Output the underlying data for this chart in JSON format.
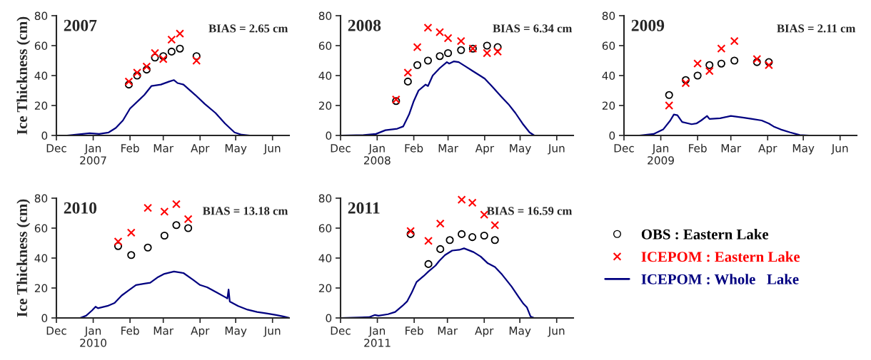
{
  "chart_data": [
    {
      "type": "scatter",
      "title": "2007",
      "ylabel": "Ice Thickness (cm)",
      "annotations": [
        "BIAS = 2.65 cm"
      ],
      "xlim": [
        "2006-12-01",
        "2007-06-15"
      ],
      "xticks": [
        {
          "value": "2006-12-01",
          "label": "Dec"
        },
        {
          "value": "2007-01-01",
          "label": "Jan\n2007"
        },
        {
          "value": "2007-02-01",
          "label": "Feb"
        },
        {
          "value": "2007-03-01",
          "label": "Mar"
        },
        {
          "value": "2007-04-01",
          "label": "Apr"
        },
        {
          "value": "2007-05-01",
          "label": "May"
        },
        {
          "value": "2007-06-01",
          "label": "Jun"
        }
      ],
      "ylim": [
        0,
        80
      ],
      "yticks": [
        0,
        20,
        40,
        60,
        80
      ],
      "grid": false,
      "series": [
        {
          "marker": "circle",
          "color": "#000000",
          "x": [
            "2007-01-31",
            "2007-02-07",
            "2007-02-15",
            "2007-02-22",
            "2007-03-01",
            "2007-03-08",
            "2007-03-15",
            "2007-03-29"
          ],
          "values": [
            34,
            40,
            44,
            52,
            53,
            56,
            58,
            53
          ]
        },
        {
          "marker": "cross",
          "color": "#ff0000",
          "x": [
            "2007-01-31",
            "2007-02-07",
            "2007-02-15",
            "2007-02-22",
            "2007-03-01",
            "2007-03-08",
            "2007-03-15",
            "2007-03-29"
          ],
          "values": [
            36,
            42,
            46,
            55,
            51,
            64,
            68,
            50
          ]
        },
        {
          "type": "line",
          "marker": "none",
          "line_style": "solid",
          "color": "#000080",
          "x": [
            "2006-12-10",
            "2006-12-29",
            "2007-01-06",
            "2007-01-14",
            "2007-01-20",
            "2007-01-26",
            "2007-02-01",
            "2007-02-09",
            "2007-02-13",
            "2007-02-19",
            "2007-02-27",
            "2007-03-06",
            "2007-03-10",
            "2007-03-13",
            "2007-03-18",
            "2007-03-28",
            "2007-04-05",
            "2007-04-14",
            "2007-04-22",
            "2007-04-30",
            "2007-05-06",
            "2007-05-13"
          ],
          "values": [
            0,
            1.5,
            1,
            2,
            5,
            10,
            18,
            24,
            27,
            33,
            34,
            36,
            37,
            35,
            34,
            27,
            21,
            15,
            8,
            2,
            0.5,
            0
          ]
        }
      ]
    },
    {
      "type": "scatter",
      "title": "2008",
      "annotations": [
        "BIAS = 6.34 cm"
      ],
      "xlim": [
        "2007-12-01",
        "2008-06-15"
      ],
      "xticks": [
        {
          "value": "2007-12-01",
          "label": "Dec"
        },
        {
          "value": "2008-01-01",
          "label": "Jan\n2008"
        },
        {
          "value": "2008-02-01",
          "label": "Feb"
        },
        {
          "value": "2008-03-01",
          "label": "Mar"
        },
        {
          "value": "2008-04-01",
          "label": "Apr"
        },
        {
          "value": "2008-05-01",
          "label": "May"
        },
        {
          "value": "2008-06-01",
          "label": "Jun"
        }
      ],
      "ylim": [
        0,
        80
      ],
      "yticks": [
        0,
        20,
        40,
        60,
        80
      ],
      "grid": false,
      "series": [
        {
          "marker": "circle",
          "color": "#000000",
          "x": [
            "2008-01-17",
            "2008-01-27",
            "2008-02-04",
            "2008-02-13",
            "2008-02-23",
            "2008-03-01",
            "2008-03-12",
            "2008-03-22",
            "2008-04-03",
            "2008-04-12"
          ],
          "values": [
            23,
            36,
            47,
            50,
            53,
            55,
            57,
            58,
            60,
            59
          ]
        },
        {
          "marker": "cross",
          "color": "#ff0000",
          "x": [
            "2008-01-17",
            "2008-01-27",
            "2008-02-04",
            "2008-02-13",
            "2008-02-23",
            "2008-03-01",
            "2008-03-12",
            "2008-03-22",
            "2008-04-03",
            "2008-04-12"
          ],
          "values": [
            24,
            42,
            59,
            72,
            69,
            65,
            63,
            58,
            55,
            56
          ]
        },
        {
          "type": "line",
          "marker": "none",
          "line_style": "solid",
          "color": "#000080",
          "x": [
            "2007-12-01",
            "2007-12-21",
            "2007-12-31",
            "2008-01-08",
            "2008-01-18",
            "2008-01-23",
            "2008-01-28",
            "2008-02-01",
            "2008-02-05",
            "2008-02-11",
            "2008-02-13",
            "2008-02-17",
            "2008-02-23",
            "2008-02-29",
            "2008-03-02",
            "2008-03-06",
            "2008-03-10",
            "2008-03-16",
            "2008-03-22",
            "2008-03-28",
            "2008-04-01",
            "2008-04-07",
            "2008-04-15",
            "2008-04-21",
            "2008-04-27",
            "2008-05-03",
            "2008-05-09",
            "2008-05-13",
            "2008-05-19"
          ],
          "values": [
            0,
            0.3,
            1,
            3.5,
            4.5,
            6,
            14,
            23,
            30,
            34,
            33,
            40,
            45,
            49,
            48,
            49.5,
            49,
            46,
            43,
            40,
            38,
            33,
            26,
            21,
            15,
            8,
            2,
            0,
            0
          ]
        }
      ]
    },
    {
      "type": "scatter",
      "title": "2009",
      "annotations": [
        "BIAS = 2.11 cm"
      ],
      "xlim": [
        "2008-12-01",
        "2009-06-15"
      ],
      "xticks": [
        {
          "value": "2008-12-01",
          "label": "Dec"
        },
        {
          "value": "2009-01-01",
          "label": "Jan\n2009"
        },
        {
          "value": "2009-02-01",
          "label": "Feb"
        },
        {
          "value": "2009-03-01",
          "label": "Mar"
        },
        {
          "value": "2009-04-01",
          "label": "Apr"
        },
        {
          "value": "2009-05-01",
          "label": "May"
        },
        {
          "value": "2009-06-01",
          "label": "Jun"
        }
      ],
      "ylim": [
        0,
        80
      ],
      "yticks": [
        0,
        20,
        40,
        60,
        80
      ],
      "grid": false,
      "series": [
        {
          "marker": "circle",
          "color": "#000000",
          "x": [
            "2009-01-08",
            "2009-01-22",
            "2009-02-01",
            "2009-02-11",
            "2009-02-21",
            "2009-03-04",
            "2009-03-23",
            "2009-04-02"
          ],
          "values": [
            27,
            37,
            40,
            47,
            48,
            50,
            49,
            49
          ]
        },
        {
          "marker": "cross",
          "color": "#ff0000",
          "x": [
            "2009-01-08",
            "2009-01-22",
            "2009-02-01",
            "2009-02-11",
            "2009-02-21",
            "2009-03-04",
            "2009-03-23",
            "2009-04-02"
          ],
          "values": [
            20,
            35,
            48,
            43,
            58,
            63,
            51,
            47
          ]
        },
        {
          "type": "line",
          "marker": "none",
          "line_style": "solid",
          "color": "#000080",
          "x": [
            "2008-12-14",
            "2008-12-26",
            "2009-01-03",
            "2009-01-09",
            "2009-01-12",
            "2009-01-15",
            "2009-01-19",
            "2009-01-27",
            "2009-01-31",
            "2009-02-04",
            "2009-02-09",
            "2009-02-11",
            "2009-02-20",
            "2009-03-01",
            "2009-03-11",
            "2009-03-19",
            "2009-03-27",
            "2009-04-02",
            "2009-04-06",
            "2009-04-12",
            "2009-04-20",
            "2009-04-28",
            "2009-05-06"
          ],
          "values": [
            0,
            1,
            4,
            10,
            14,
            13.5,
            9,
            7.5,
            8,
            10,
            13,
            11,
            11.5,
            13,
            12,
            11,
            10,
            8,
            6,
            4,
            2,
            0.3,
            0
          ]
        }
      ]
    },
    {
      "type": "scatter",
      "title": "2010",
      "ylabel": "Ice Thickness (cm)",
      "annotations": [
        "BIAS = 13.18 cm"
      ],
      "xlim": [
        "2009-12-01",
        "2010-06-15"
      ],
      "xticks": [
        {
          "value": "2009-12-01",
          "label": "Dec"
        },
        {
          "value": "2010-01-01",
          "label": "Jan\n2010"
        },
        {
          "value": "2010-02-01",
          "label": "Feb"
        },
        {
          "value": "2010-03-01",
          "label": "Mar"
        },
        {
          "value": "2010-04-01",
          "label": "Apr"
        },
        {
          "value": "2010-05-01",
          "label": "May"
        },
        {
          "value": "2010-06-01",
          "label": "Jun"
        }
      ],
      "ylim": [
        0,
        80
      ],
      "yticks": [
        0,
        20,
        40,
        60,
        80
      ],
      "grid": false,
      "series": [
        {
          "marker": "circle",
          "color": "#000000",
          "x": [
            "2010-01-22",
            "2010-02-02",
            "2010-02-16",
            "2010-03-02",
            "2010-03-12",
            "2010-03-22"
          ],
          "values": [
            48,
            42,
            47,
            55,
            62,
            60
          ]
        },
        {
          "marker": "cross",
          "color": "#ff0000",
          "x": [
            "2010-01-22",
            "2010-02-02",
            "2010-02-16",
            "2010-03-02",
            "2010-03-12",
            "2010-03-22"
          ],
          "values": [
            51,
            57,
            73.5,
            71,
            76,
            66
          ]
        },
        {
          "type": "line",
          "marker": "none",
          "line_style": "solid",
          "color": "#000080",
          "x": [
            "2009-12-01",
            "2009-12-21",
            "2009-12-26",
            "2009-12-31",
            "2010-01-03",
            "2010-01-05",
            "2010-01-13",
            "2010-01-19",
            "2010-01-25",
            "2010-01-31",
            "2010-02-06",
            "2010-02-14",
            "2010-02-18",
            "2010-02-24",
            "2010-03-02",
            "2010-03-10",
            "2010-03-18",
            "2010-03-26",
            "2010-04-01",
            "2010-04-07",
            "2010-04-15",
            "2010-04-23",
            "2010-04-24",
            "2010-04-25",
            "2010-04-26",
            "2010-05-03",
            "2010-05-11",
            "2010-05-19",
            "2010-05-27",
            "2010-06-04",
            "2010-06-10",
            "2010-06-15"
          ],
          "values": [
            0,
            0,
            1.5,
            5,
            7.5,
            6.5,
            8,
            10,
            15,
            18.5,
            22,
            23,
            23.5,
            27,
            29.5,
            31,
            30,
            25.5,
            22,
            20.5,
            17,
            13.5,
            13,
            19,
            11,
            8,
            5.5,
            4,
            3,
            2,
            1,
            0
          ]
        }
      ]
    },
    {
      "type": "scatter",
      "title": "2011",
      "annotations": [
        "BIAS = 16.59 cm"
      ],
      "legend": "right",
      "xlim": [
        "2010-12-01",
        "2011-06-15"
      ],
      "xticks": [
        {
          "value": "2010-12-01",
          "label": "Dec"
        },
        {
          "value": "2011-01-01",
          "label": "Jan\n2011"
        },
        {
          "value": "2011-02-01",
          "label": "Feb"
        },
        {
          "value": "2011-03-01",
          "label": "Mar"
        },
        {
          "value": "2011-04-01",
          "label": "Apr"
        },
        {
          "value": "2011-05-01",
          "label": "May"
        },
        {
          "value": "2011-06-01",
          "label": "Jun"
        }
      ],
      "ylim": [
        0,
        80
      ],
      "yticks": [
        0,
        20,
        40,
        60,
        80
      ],
      "grid": false,
      "series": [
        {
          "name": "OBS : Eastern Lake",
          "marker": "circle",
          "color": "#000000",
          "x": [
            "2011-01-29",
            "2011-02-13",
            "2011-02-23",
            "2011-03-03",
            "2011-03-13",
            "2011-03-22",
            "2011-04-01",
            "2011-04-10"
          ],
          "values": [
            56,
            36,
            46,
            52,
            56,
            54,
            55,
            52
          ]
        },
        {
          "name": "ICEPOM : Eastern Lake",
          "marker": "cross",
          "color": "#ff0000",
          "x": [
            "2011-01-29",
            "2011-02-13",
            "2011-02-23",
            "2011-03-03",
            "2011-03-13",
            "2011-03-22",
            "2011-04-01",
            "2011-04-10"
          ],
          "values": [
            58,
            51.5,
            63,
            null,
            79,
            77,
            69,
            62
          ]
        },
        {
          "name": "ICEPOM : Whole   Lake",
          "type": "line",
          "marker": "none",
          "line_style": "solid",
          "color": "#000080",
          "x": [
            "2010-12-01",
            "2010-12-25",
            "2010-12-30",
            "2011-01-02",
            "2011-01-10",
            "2011-01-16",
            "2011-01-22",
            "2011-01-26",
            "2011-01-30",
            "2011-02-03",
            "2011-02-09",
            "2011-02-13",
            "2011-02-19",
            "2011-02-22",
            "2011-02-27",
            "2011-03-05",
            "2011-03-11",
            "2011-03-15",
            "2011-03-23",
            "2011-03-29",
            "2011-04-04",
            "2011-04-10",
            "2011-04-16",
            "2011-04-24",
            "2011-04-30",
            "2011-05-04",
            "2011-05-07",
            "2011-05-10",
            "2011-05-13",
            "2011-05-20"
          ],
          "values": [
            0,
            0.5,
            2,
            1.5,
            2.5,
            4,
            8,
            11,
            17,
            24,
            28,
            31,
            35,
            38,
            42,
            45,
            45.5,
            46.5,
            44,
            41,
            36.5,
            34,
            29,
            21,
            14,
            9.5,
            7,
            1,
            0,
            0
          ]
        }
      ]
    }
  ]
}
